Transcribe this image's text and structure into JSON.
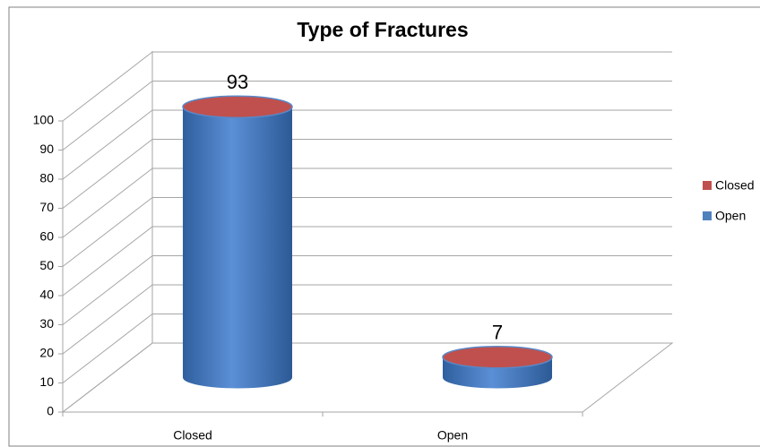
{
  "chart_data": {
    "type": "cylinder",
    "title": "Type of Fractures",
    "categories": [
      "Closed",
      "Open"
    ],
    "values": [
      93,
      7
    ],
    "color": "#4f81bd",
    "top_color": "#c0504d",
    "legend": [
      {
        "name": "Closed",
        "color": "#c0504d"
      },
      {
        "name": "Open",
        "color": "#4f81bd"
      }
    ],
    "ylim": [
      0,
      100
    ],
    "yticks": [
      0,
      10,
      20,
      30,
      40,
      50,
      60,
      70,
      80,
      90,
      100
    ],
    "grid": true
  }
}
